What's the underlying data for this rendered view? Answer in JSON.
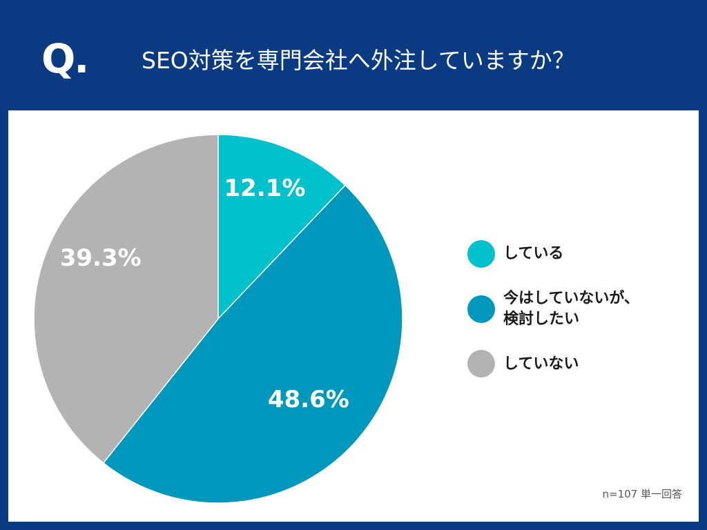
{
  "header": {
    "q_mark": "Q.",
    "title": "SEO対策を専門会社へ外注していますか？"
  },
  "chart_data": {
    "type": "pie",
    "categories": [
      "している",
      "今はしていないが、\n検討したい",
      "していない"
    ],
    "values": [
      12.1,
      48.6,
      39.3
    ],
    "data_labels": [
      "12.1%",
      "48.6%",
      "39.3%"
    ],
    "colors": [
      "#00c0cc",
      "#0097bd",
      "#b3b3b3"
    ],
    "title": "SEO対策を専門会社へ外注していますか？",
    "legend_position": "right",
    "start_angle": "12 o'clock",
    "direction": "clockwise"
  },
  "legend": {
    "items": [
      {
        "label": "している",
        "color": "#00c0cc"
      },
      {
        "label": "今はしていないが、\n検討したい",
        "color": "#0097bd"
      },
      {
        "label": "していない",
        "color": "#b3b3b3"
      }
    ]
  },
  "footer": {
    "note": "n=107 単一回答"
  }
}
